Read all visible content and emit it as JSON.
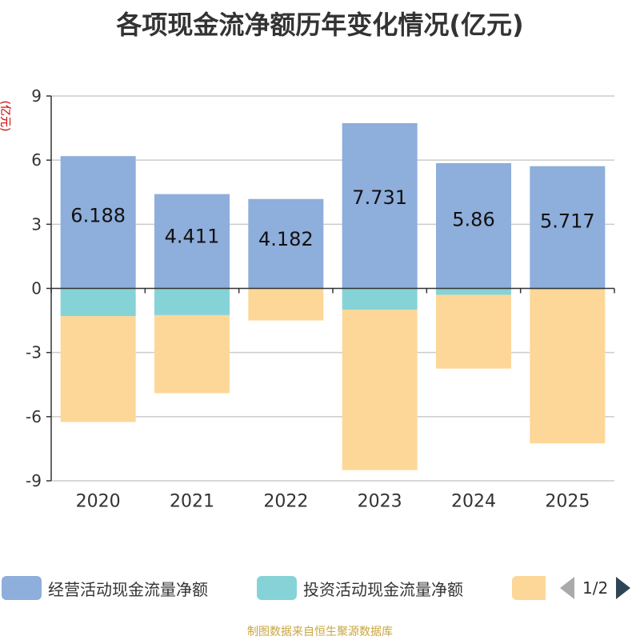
{
  "chart_data": {
    "type": "bar",
    "stacked": true,
    "title": "各项现金流净额历年变化情况(亿元)",
    "ylabel": "(亿元)",
    "xlabel": "",
    "categories": [
      "2020",
      "2021",
      "2022",
      "2023",
      "2024",
      "2025"
    ],
    "ylim": [
      -9,
      9
    ],
    "yticks": [
      -9,
      -6,
      -3,
      0,
      3,
      6,
      9
    ],
    "grid": true,
    "series": [
      {
        "name": "经营活动现金流量净额",
        "color": "#8eaedb",
        "values": [
          6.188,
          4.411,
          4.182,
          7.731,
          5.86,
          5.717
        ],
        "labels": [
          "6.188",
          "4.411",
          "4.182",
          "7.731",
          "5.86",
          "5.717"
        ]
      },
      {
        "name": "投资活动现金流量净额",
        "color": "#86d3d7",
        "values": [
          -1.3,
          -1.25,
          0,
          -1.0,
          -0.3,
          -0.05
        ]
      },
      {
        "name": "",
        "color": "#fdd798",
        "values": [
          -4.95,
          -3.65,
          -1.5,
          -7.5,
          -3.45,
          -7.2
        ]
      }
    ],
    "legend": {
      "position": "bottom",
      "page": "1/2"
    }
  },
  "source_note": "制图数据来自恒生聚源数据库"
}
